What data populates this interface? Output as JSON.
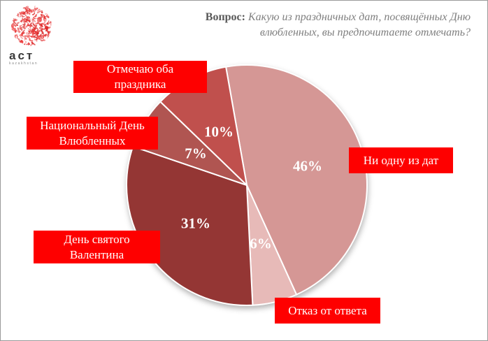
{
  "logo": {
    "brand": "аст",
    "country": "kazakhstan"
  },
  "question": {
    "prefix": "Вопрос:",
    "text": "Какую из праздничных дат, посвящённых Дню влюбленных, вы предпочитаете отмечать?"
  },
  "chart_data": {
    "type": "pie",
    "unit": "percent",
    "direction": "clockwise",
    "start_angle_deg": -10,
    "data_label_format": "percent",
    "slice_border_color": "#ffffff",
    "label_box_color": "#fe0000",
    "label_text_color": "#ffffff",
    "slices": [
      {
        "label": "Ни одну из дат",
        "value": 46,
        "color": "#d59795"
      },
      {
        "label": "Отказ от ответа",
        "value": 6,
        "color": "#e7bab8"
      },
      {
        "label": "День святого Валентина",
        "value": 31,
        "color": "#943634"
      },
      {
        "label": "Национальный День Влюбленных",
        "value": 7,
        "color": "#b05551"
      },
      {
        "label": "Отмечаю оба праздника",
        "value": 10,
        "color": "#c0504d"
      }
    ]
  }
}
